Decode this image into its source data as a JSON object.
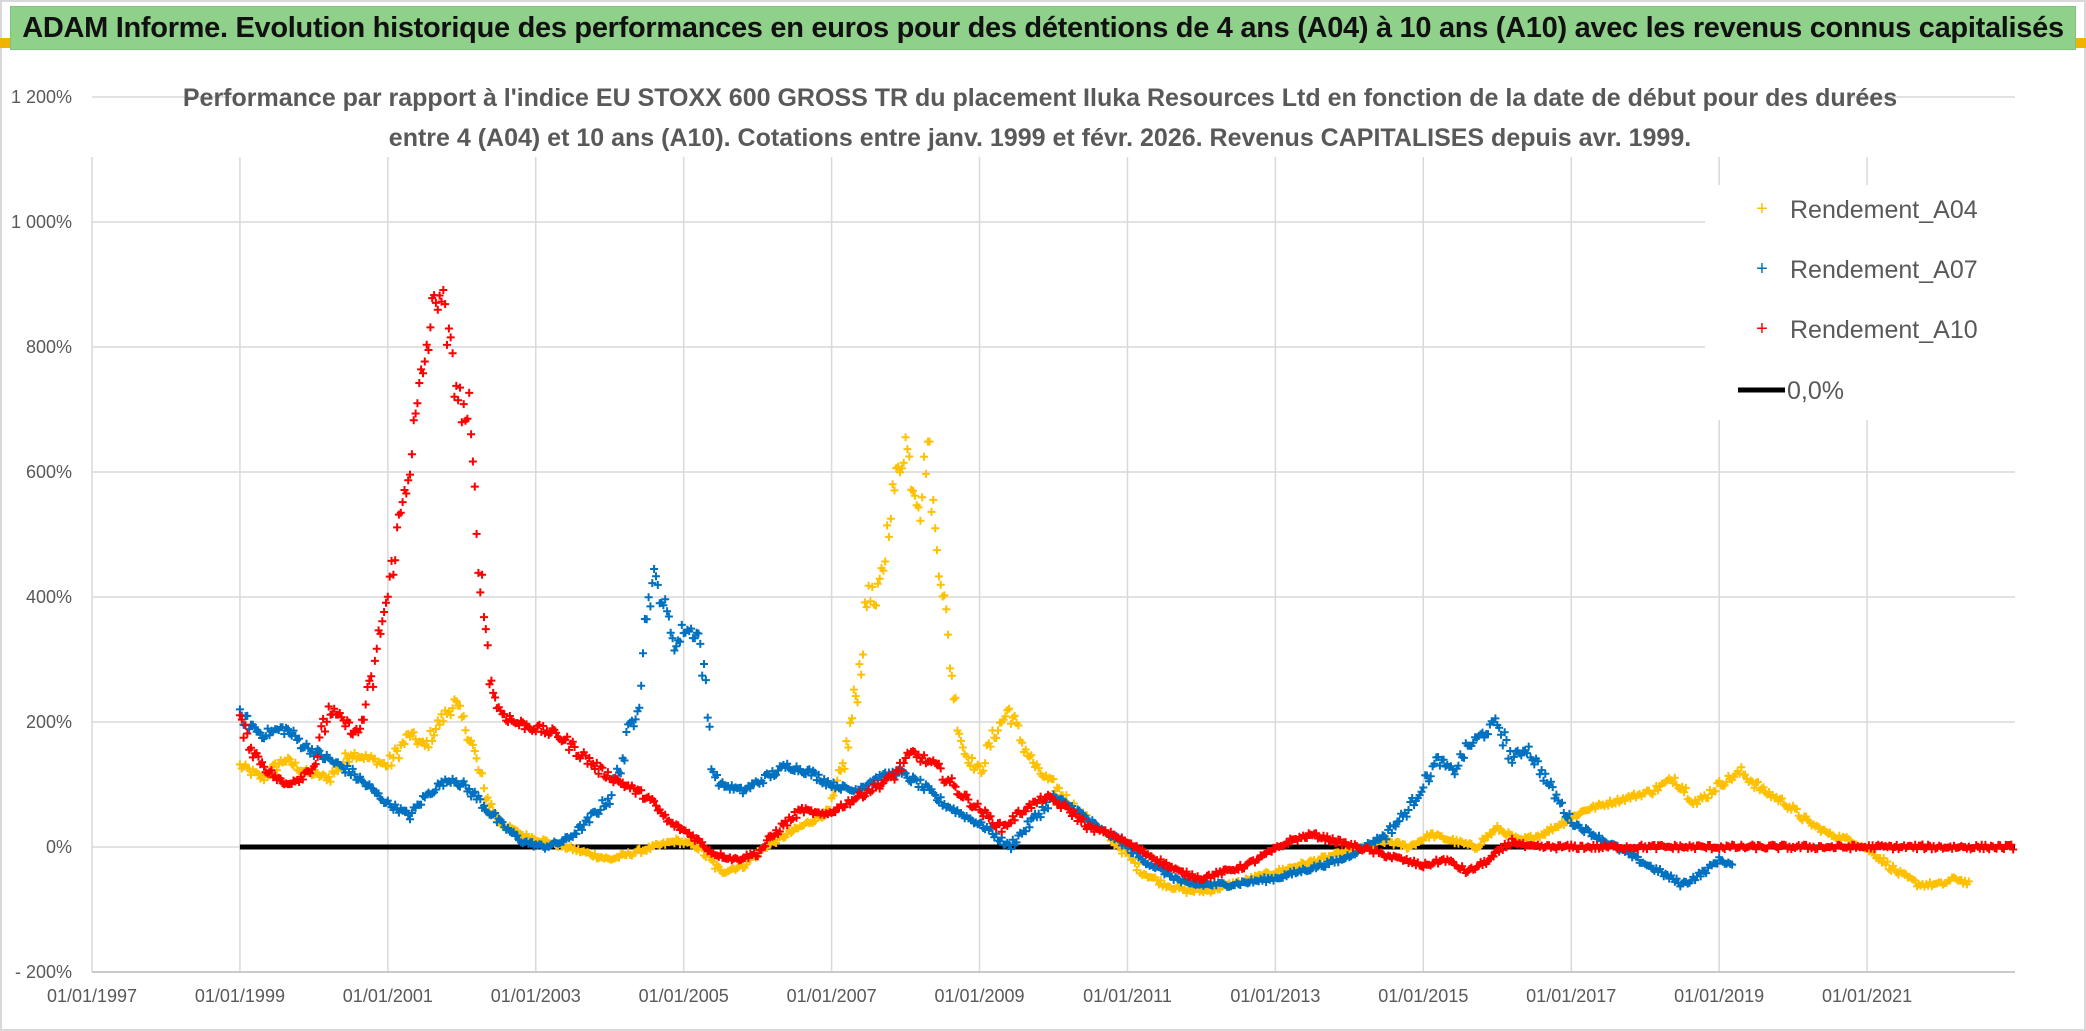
{
  "banner": {
    "title": "ADAM Informe. Evolution historique des performances en euros pour des détentions de 4 ans (A04) à 10 ans (A10) avec les revenus connus capitalisés"
  },
  "colors": {
    "banner_bg": "#8fd08a",
    "A04": "#ffc000",
    "A07": "#0070c0",
    "A10": "#ff0000",
    "zero_line": "#000000",
    "grid": "#d9d9d9"
  },
  "chart_data": {
    "type": "scatter",
    "title_lines": [
      "Performance par rapport à l'indice EU STOXX 600 GROSS TR  du placement Iluka Resources Ltd en fonction de la date de début pour des durées",
      "entre 4 (A04) et 10 ans (A10). Cotations entre janv. 1999 et févr. 2026. Revenus CAPITALISES depuis avr. 1999."
    ],
    "xlabel": "",
    "ylabel": "",
    "x_range": [
      1997.0,
      2023.0
    ],
    "y_range": [
      -200,
      1200
    ],
    "y_ticks": [
      -200,
      0,
      200,
      400,
      600,
      800,
      1000,
      1200
    ],
    "y_tick_labels": [
      "- 200%",
      "0%",
      "200%",
      "400%",
      "600%",
      "800%",
      "1 000%",
      "1 200%"
    ],
    "x_ticks": [
      1997,
      1999,
      2001,
      2003,
      2005,
      2007,
      2009,
      2011,
      2013,
      2015,
      2017,
      2019,
      2021
    ],
    "x_tick_labels": [
      "01/01/1997",
      "01/01/1999",
      "01/01/2001",
      "01/01/2003",
      "01/01/2005",
      "01/01/2007",
      "01/01/2009",
      "01/01/2011",
      "01/01/2013",
      "01/01/2015",
      "01/01/2017",
      "01/01/2019",
      "01/01/2021"
    ],
    "grid": true,
    "legend_position": "top-right",
    "series": [
      {
        "name": "Rendement_A04",
        "color": "#ffc000",
        "marker": "+",
        "x": [
          1999.0,
          1999.3,
          1999.6,
          1999.9,
          2000.2,
          2000.5,
          2000.8,
          2001.0,
          2001.3,
          2001.5,
          2001.7,
          2001.9,
          2002.1,
          2002.3,
          2002.5,
          2002.8,
          2003.1,
          2003.4,
          2003.7,
          2004.0,
          2004.3,
          2004.6,
          2004.9,
          2005.2,
          2005.5,
          2005.8,
          2006.1,
          2006.4,
          2006.7,
          2007.0,
          2007.2,
          2007.4,
          2007.5,
          2007.6,
          2007.7,
          2007.8,
          2007.9,
          2008.0,
          2008.1,
          2008.2,
          2008.3,
          2008.4,
          2008.5,
          2008.6,
          2008.7,
          2008.8,
          2009.0,
          2009.2,
          2009.4,
          2009.6,
          2009.8,
          2010.0,
          2010.3,
          2010.6,
          2010.9,
          2011.2,
          2011.5,
          2011.8,
          2012.1,
          2012.4,
          2012.7,
          2013.0,
          2013.3,
          2013.6,
          2013.9,
          2014.2,
          2014.5,
          2014.8,
          2015.1,
          2015.4,
          2015.7,
          2016.0,
          2016.3,
          2016.6,
          2016.9,
          2017.2,
          2017.5,
          2017.8,
          2018.1,
          2018.4,
          2018.7,
          2019.0,
          2019.3,
          2019.6,
          2019.9,
          2020.2,
          2020.5,
          2020.8,
          2021.1,
          2021.4,
          2021.7,
          2022.0,
          2022.2,
          2022.4
        ],
        "y": [
          130,
          110,
          140,
          120,
          110,
          150,
          140,
          130,
          180,
          160,
          200,
          230,
          180,
          90,
          40,
          20,
          10,
          0,
          -10,
          -20,
          -10,
          0,
          10,
          0,
          -40,
          -30,
          0,
          20,
          40,
          60,
          150,
          300,
          420,
          380,
          450,
          550,
          600,
          650,
          580,
          550,
          650,
          500,
          420,
          300,
          200,
          150,
          120,
          180,
          220,
          160,
          120,
          100,
          60,
          30,
          0,
          -40,
          -60,
          -70,
          -70,
          -60,
          -50,
          -40,
          -30,
          -20,
          -10,
          0,
          10,
          0,
          20,
          10,
          0,
          30,
          10,
          20,
          40,
          60,
          70,
          80,
          90,
          110,
          70,
          100,
          120,
          90,
          70,
          40,
          20,
          10,
          -10,
          -40,
          -60,
          -60,
          -50,
          -60
        ]
      },
      {
        "name": "Rendement_A07",
        "color": "#0070c0",
        "marker": "+",
        "x": [
          1999.0,
          1999.3,
          1999.6,
          1999.9,
          2000.2,
          2000.5,
          2000.8,
          2001.0,
          2001.3,
          2001.5,
          2001.7,
          2001.9,
          2002.2,
          2002.5,
          2002.8,
          2003.1,
          2003.4,
          2003.7,
          2004.0,
          2004.2,
          2004.4,
          2004.5,
          2004.6,
          2004.7,
          2004.8,
          2004.9,
          2005.0,
          2005.2,
          2005.3,
          2005.4,
          2005.5,
          2005.8,
          2006.1,
          2006.4,
          2006.7,
          2007.0,
          2007.3,
          2007.6,
          2007.9,
          2008.2,
          2008.5,
          2008.8,
          2009.1,
          2009.4,
          2009.7,
          2010.0,
          2010.3,
          2010.6,
          2010.9,
          2011.2,
          2011.5,
          2011.8,
          2012.1,
          2012.4,
          2012.7,
          2013.0,
          2013.3,
          2013.6,
          2013.9,
          2014.2,
          2014.5,
          2014.8,
          2015.0,
          2015.2,
          2015.4,
          2015.6,
          2015.8,
          2016.0,
          2016.2,
          2016.4,
          2016.6,
          2016.8,
          2017.0,
          2017.3,
          2017.6,
          2017.9,
          2018.2,
          2018.5,
          2018.8,
          2019.0,
          2019.2
        ],
        "y": [
          210,
          180,
          190,
          160,
          140,
          120,
          90,
          70,
          50,
          80,
          100,
          110,
          80,
          40,
          10,
          0,
          10,
          40,
          80,
          150,
          250,
          380,
          430,
          400,
          360,
          320,
          350,
          340,
          250,
          120,
          100,
          90,
          110,
          130,
          120,
          100,
          90,
          110,
          120,
          100,
          70,
          50,
          30,
          0,
          40,
          80,
          60,
          30,
          10,
          -20,
          -40,
          -60,
          -60,
          -60,
          -55,
          -50,
          -40,
          -30,
          -20,
          0,
          20,
          60,
          100,
          140,
          120,
          160,
          180,
          200,
          140,
          160,
          120,
          80,
          40,
          20,
          0,
          -20,
          -40,
          -60,
          -40,
          -20,
          -30
        ]
      },
      {
        "name": "Rendement_A10",
        "color": "#ff0000",
        "marker": "+",
        "x": [
          1999.0,
          1999.2,
          1999.4,
          1999.6,
          1999.8,
          2000.0,
          2000.2,
          2000.4,
          2000.6,
          2000.8,
          2000.9,
          2001.0,
          2001.1,
          2001.2,
          2001.3,
          2001.4,
          2001.5,
          2001.6,
          2001.7,
          2001.8,
          2001.9,
          2002.0,
          2002.1,
          2002.2,
          2002.3,
          2002.4,
          2002.5,
          2002.7,
          2003.0,
          2003.3,
          2003.6,
          2003.9,
          2004.2,
          2004.5,
          2004.8,
          2005.1,
          2005.4,
          2005.7,
          2006.0,
          2006.3,
          2006.6,
          2006.9,
          2007.2,
          2007.5,
          2007.8,
          2008.1,
          2008.4,
          2008.7,
          2009.0,
          2009.3,
          2009.6,
          2009.9,
          2010.2,
          2010.5,
          2010.8,
          2011.1,
          2011.4,
          2011.7,
          2012.0,
          2012.3,
          2012.6,
          2012.9,
          2013.2,
          2013.5,
          2013.8,
          2014.1,
          2014.4,
          2014.7,
          2015.0,
          2015.3,
          2015.6,
          2015.9,
          2016.2,
          2016.4,
          2016.6,
          2017.0,
          2017.5,
          2018.0,
          2018.5,
          2019.0,
          2019.5,
          2020.0,
          2020.5,
          2021.0,
          2021.5,
          2022.0,
          2022.5,
          2023.0
        ],
        "y": [
          200,
          150,
          120,
          100,
          110,
          130,
          220,
          200,
          180,
          270,
          350,
          400,
          480,
          550,
          620,
          700,
          780,
          850,
          900,
          820,
          750,
          700,
          680,
          500,
          380,
          260,
          220,
          200,
          190,
          180,
          150,
          120,
          100,
          80,
          40,
          20,
          -10,
          -20,
          -10,
          30,
          60,
          50,
          70,
          90,
          110,
          150,
          130,
          90,
          60,
          30,
          60,
          80,
          60,
          30,
          20,
          0,
          -20,
          -40,
          -50,
          -40,
          -30,
          -10,
          10,
          20,
          10,
          0,
          -10,
          -20,
          -30,
          -20,
          -40,
          -20,
          10,
          0,
          0,
          0,
          0,
          0,
          0,
          0,
          0,
          0,
          0,
          0,
          0,
          0,
          0,
          0
        ]
      },
      {
        "name": "0,0%",
        "color": "#000000",
        "type": "line",
        "x": [
          1999.0,
          2023.0
        ],
        "y": [
          0,
          0
        ]
      }
    ]
  }
}
